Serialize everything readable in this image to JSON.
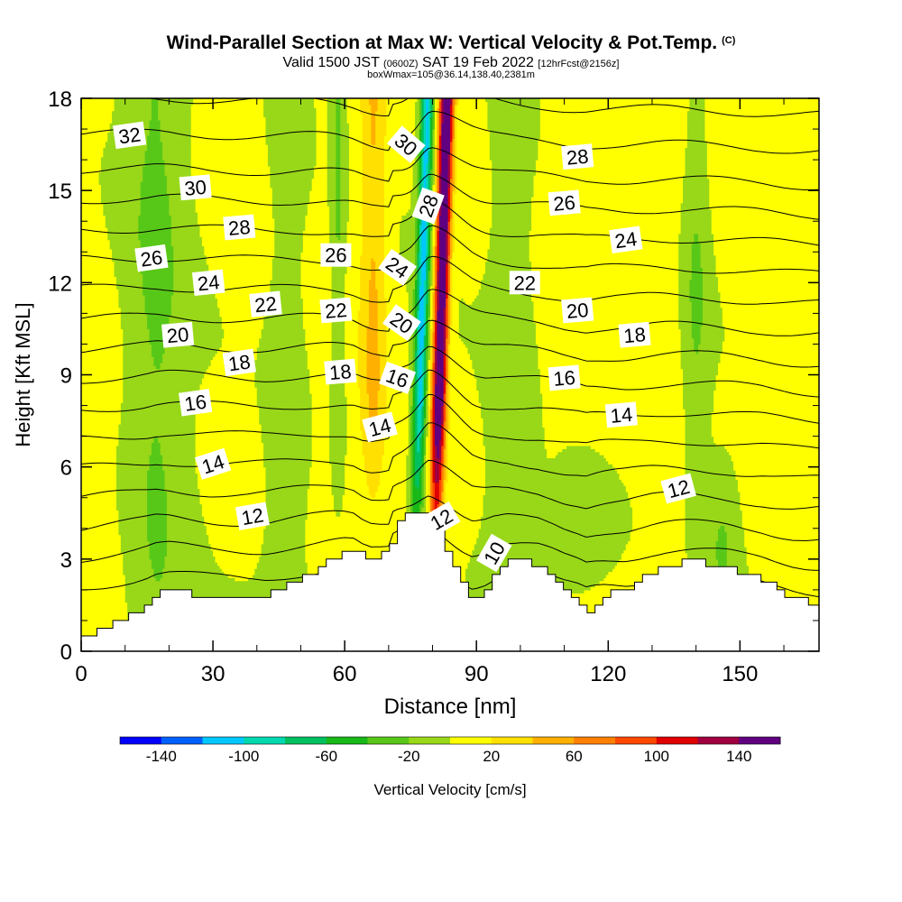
{
  "header": {
    "title": "Wind-Parallel Section at Max W: Vertical Velocity & Pot.Temp.",
    "copyright": "(C)",
    "valid_main": "Valid 1500 JST",
    "valid_utc": "(0600Z)",
    "valid_date": "SAT 19 Feb 2022",
    "forecast_info": "[12hrFcst@2156z]",
    "box_info": "boxWmax=105@36.14,138.40,2381m"
  },
  "chart_data": {
    "type": "heatmap",
    "xlabel": "Distance [nm]",
    "ylabel": "Height [Kft MSL]",
    "xlim": [
      0,
      168
    ],
    "ylim": [
      0,
      18
    ],
    "x_ticks": [
      0,
      30,
      60,
      90,
      120,
      150
    ],
    "y_ticks": [
      0,
      3,
      6,
      9,
      12,
      15,
      18
    ],
    "colorbar": {
      "label": "Vertical Velocity [cm/s]",
      "tick_labels": [
        "-140",
        "-100",
        "-60",
        "-20",
        "20",
        "60",
        "100",
        "140"
      ],
      "tick_values": [
        -140,
        -100,
        -60,
        -20,
        20,
        60,
        100,
        140
      ],
      "boundaries": [
        -160,
        -140,
        -120,
        -100,
        -80,
        -60,
        -40,
        -20,
        0,
        20,
        40,
        60,
        80,
        100,
        120,
        140,
        160
      ],
      "colors": [
        "#0000ff",
        "#0060ff",
        "#00c8ff",
        "#00d8b0",
        "#00c060",
        "#18b818",
        "#58c818",
        "#98d818",
        "#ffff00",
        "#ffe000",
        "#ffb000",
        "#ff8000",
        "#ff4800",
        "#e00000",
        "#a00040",
        "#600080"
      ]
    },
    "terrain": [
      [
        0,
        0.4
      ],
      [
        4,
        0.7
      ],
      [
        8,
        1.0
      ],
      [
        12,
        1.3
      ],
      [
        15,
        1.6
      ],
      [
        17,
        1.9
      ],
      [
        20,
        2.0
      ],
      [
        26,
        1.8
      ],
      [
        30,
        1.7
      ],
      [
        38,
        1.7
      ],
      [
        42,
        1.8
      ],
      [
        46,
        2.1
      ],
      [
        50,
        2.4
      ],
      [
        54,
        2.7
      ],
      [
        57,
        3.0
      ],
      [
        60,
        3.3
      ],
      [
        62,
        3.4
      ],
      [
        64,
        3.0
      ],
      [
        66,
        2.9
      ],
      [
        68,
        3.2
      ],
      [
        70,
        3.5
      ],
      [
        72,
        4.2
      ],
      [
        74,
        4.5
      ],
      [
        76,
        4.5
      ],
      [
        79,
        4.5
      ],
      [
        81,
        3.9
      ],
      [
        83,
        3.3
      ],
      [
        85,
        2.6
      ],
      [
        87,
        2.0
      ],
      [
        89,
        1.6
      ],
      [
        90,
        1.7
      ],
      [
        92,
        2.0
      ],
      [
        94,
        2.5
      ],
      [
        97,
        2.9
      ],
      [
        100,
        2.9
      ],
      [
        104,
        2.8
      ],
      [
        107,
        2.4
      ],
      [
        110,
        1.9
      ],
      [
        113,
        1.6
      ],
      [
        115,
        1.3
      ],
      [
        117,
        1.6
      ],
      [
        119,
        1.8
      ],
      [
        121,
        1.9
      ],
      [
        124,
        2.0
      ],
      [
        127,
        2.3
      ],
      [
        130,
        2.6
      ],
      [
        133,
        2.8
      ],
      [
        136,
        2.9
      ],
      [
        140,
        2.9
      ],
      [
        145,
        2.8
      ],
      [
        148,
        2.7
      ],
      [
        151,
        2.5
      ],
      [
        155,
        2.3
      ],
      [
        158,
        2.0
      ],
      [
        162,
        1.7
      ],
      [
        165,
        1.6
      ],
      [
        168,
        1.6
      ]
    ],
    "theta_label_values": [
      "32",
      "30",
      "28",
      "26",
      "24",
      "22",
      "20",
      "18",
      "16",
      "14",
      "12",
      "30",
      "28",
      "26",
      "24",
      "22",
      "20",
      "18",
      "16",
      "14",
      "12",
      "10",
      "28",
      "26",
      "24",
      "22",
      "20",
      "18",
      "16",
      "14",
      "12"
    ],
    "theta_labels": [
      {
        "text": "32",
        "x": 11,
        "z": 16.8,
        "rot": -8
      },
      {
        "text": "30",
        "x": 26,
        "z": 15.1,
        "rot": -5
      },
      {
        "text": "28",
        "x": 36,
        "z": 13.8,
        "rot": -5
      },
      {
        "text": "26",
        "x": 16,
        "z": 12.8,
        "rot": -8
      },
      {
        "text": "24",
        "x": 29,
        "z": 12.0,
        "rot": -6
      },
      {
        "text": "22",
        "x": 42,
        "z": 11.3,
        "rot": -6
      },
      {
        "text": "20",
        "x": 22,
        "z": 10.3,
        "rot": -5
      },
      {
        "text": "18",
        "x": 36,
        "z": 9.4,
        "rot": -8
      },
      {
        "text": "16",
        "x": 26,
        "z": 8.1,
        "rot": -8
      },
      {
        "text": "14",
        "x": 30,
        "z": 6.1,
        "rot": -18
      },
      {
        "text": "12",
        "x": 39,
        "z": 4.4,
        "rot": -10
      },
      {
        "text": "30",
        "x": 74,
        "z": 16.5,
        "rot": 40
      },
      {
        "text": "28",
        "x": 79,
        "z": 14.5,
        "rot": -70
      },
      {
        "text": "26",
        "x": 58,
        "z": 12.9,
        "rot": 0
      },
      {
        "text": "24",
        "x": 72,
        "z": 12.5,
        "rot": 35
      },
      {
        "text": "22",
        "x": 58,
        "z": 11.1,
        "rot": -5
      },
      {
        "text": "20",
        "x": 73,
        "z": 10.7,
        "rot": 35
      },
      {
        "text": "18",
        "x": 59,
        "z": 9.1,
        "rot": -5
      },
      {
        "text": "16",
        "x": 72,
        "z": 8.9,
        "rot": 20
      },
      {
        "text": "14",
        "x": 68,
        "z": 7.3,
        "rot": -15
      },
      {
        "text": "12",
        "x": 82,
        "z": 4.3,
        "rot": -30
      },
      {
        "text": "10",
        "x": 94,
        "z": 3.2,
        "rot": -60
      },
      {
        "text": "28",
        "x": 113,
        "z": 16.1,
        "rot": -5
      },
      {
        "text": "26",
        "x": 110,
        "z": 14.6,
        "rot": -5
      },
      {
        "text": "24",
        "x": 124,
        "z": 13.4,
        "rot": -8
      },
      {
        "text": "22",
        "x": 101,
        "z": 12.0,
        "rot": 0
      },
      {
        "text": "20",
        "x": 113,
        "z": 11.1,
        "rot": -5
      },
      {
        "text": "18",
        "x": 126,
        "z": 10.3,
        "rot": -5
      },
      {
        "text": "16",
        "x": 110,
        "z": 8.9,
        "rot": -5
      },
      {
        "text": "14",
        "x": 123,
        "z": 7.7,
        "rot": -5
      },
      {
        "text": "12",
        "x": 136,
        "z": 5.3,
        "rot": -15
      }
    ],
    "grid": false
  }
}
